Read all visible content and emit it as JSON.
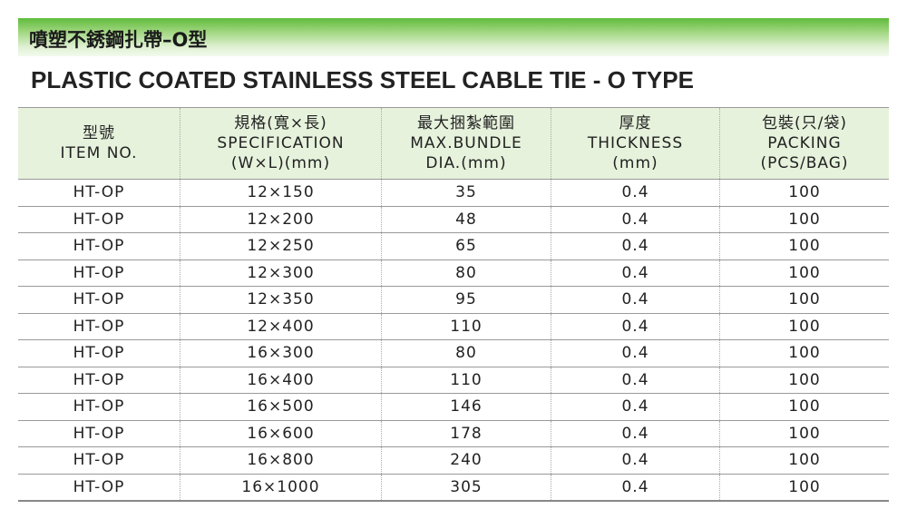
{
  "header": {
    "title_zh": "噴塑不銹鋼扎帶–O型",
    "title_en": "PLASTIC COATED STAINLESS STEEL CABLE TIE - O TYPE"
  },
  "table": {
    "columns": [
      [
        "型號",
        "ITEM NO."
      ],
      [
        "規格(寬×長)",
        "SPECIFICATION",
        "(W×L)(mm)"
      ],
      [
        "最大捆紮範圍",
        "MAX.BUNDLE",
        "DIA.(mm)"
      ],
      [
        "厚度",
        "THICKNESS",
        "(mm)"
      ],
      [
        "包裝(只/袋)",
        "PACKING",
        "(PCS/BAG)"
      ]
    ],
    "rows": [
      [
        "HT-OP",
        "12×150",
        "35",
        "0.4",
        "100"
      ],
      [
        "HT-OP",
        "12×200",
        "48",
        "0.4",
        "100"
      ],
      [
        "HT-OP",
        "12×250",
        "65",
        "0.4",
        "100"
      ],
      [
        "HT-OP",
        "12×300",
        "80",
        "0.4",
        "100"
      ],
      [
        "HT-OP",
        "12×350",
        "95",
        "0.4",
        "100"
      ],
      [
        "HT-OP",
        "12×400",
        "110",
        "0.4",
        "100"
      ],
      [
        "HT-OP",
        "16×300",
        "80",
        "0.4",
        "100"
      ],
      [
        "HT-OP",
        "16×400",
        "110",
        "0.4",
        "100"
      ],
      [
        "HT-OP",
        "16×500",
        "146",
        "0.4",
        "100"
      ],
      [
        "HT-OP",
        "16×600",
        "178",
        "0.4",
        "100"
      ],
      [
        "HT-OP",
        "16×800",
        "240",
        "0.4",
        "100"
      ],
      [
        "HT-OP",
        "16×1000",
        "305",
        "0.4",
        "100"
      ]
    ]
  }
}
